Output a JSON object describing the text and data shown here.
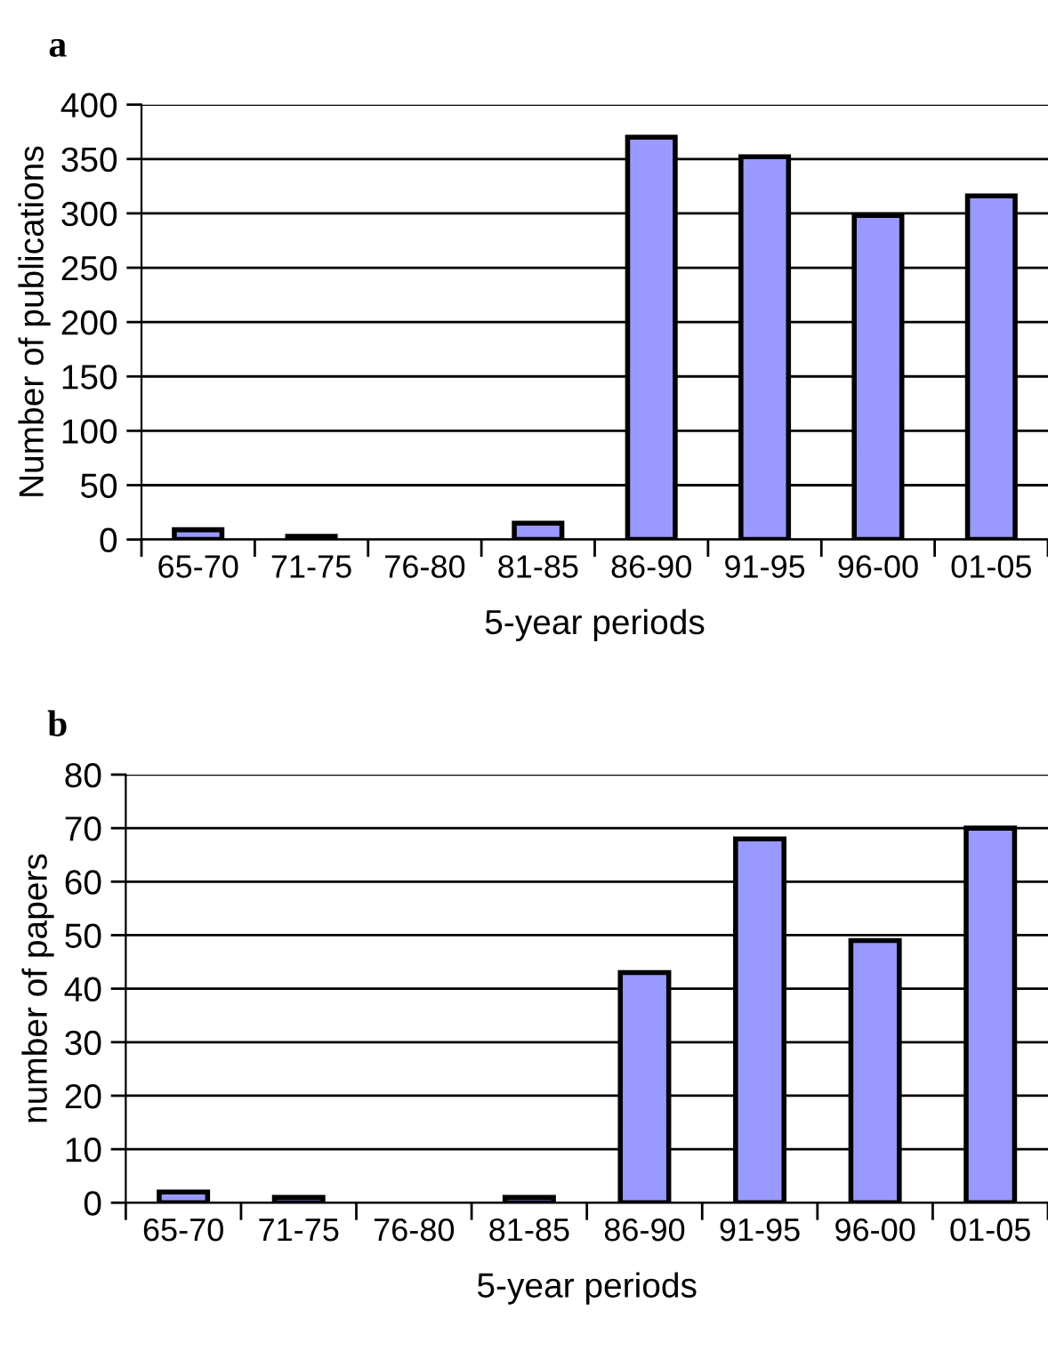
{
  "chart_data": [
    {
      "type": "bar",
      "annotations": [
        "a"
      ],
      "xlabel": "5-year periods",
      "ylabel": "Number of publications",
      "categories": [
        "65-70",
        "71-75",
        "76-80",
        "81-85",
        "86-90",
        "91-95",
        "96-00",
        "01-05"
      ],
      "values": [
        9,
        3,
        0,
        15,
        370,
        352,
        298,
        316
      ],
      "color": "#9999ff",
      "ylim": [
        0,
        400
      ],
      "yticks": [
        0,
        50,
        100,
        150,
        200,
        250,
        300,
        350,
        400
      ],
      "grid": "y"
    },
    {
      "type": "bar",
      "annotations": [
        "b"
      ],
      "xlabel": "5-year periods",
      "ylabel": "number of papers",
      "categories": [
        "65-70",
        "71-75",
        "76-80",
        "81-85",
        "86-90",
        "91-95",
        "96-00",
        "01-05"
      ],
      "values": [
        2,
        1,
        0,
        1,
        43,
        68,
        49,
        70
      ],
      "color": "#9999ff",
      "ylim": [
        0,
        80
      ],
      "yticks": [
        0,
        10,
        20,
        30,
        40,
        50,
        60,
        70,
        80
      ],
      "grid": "y"
    }
  ]
}
